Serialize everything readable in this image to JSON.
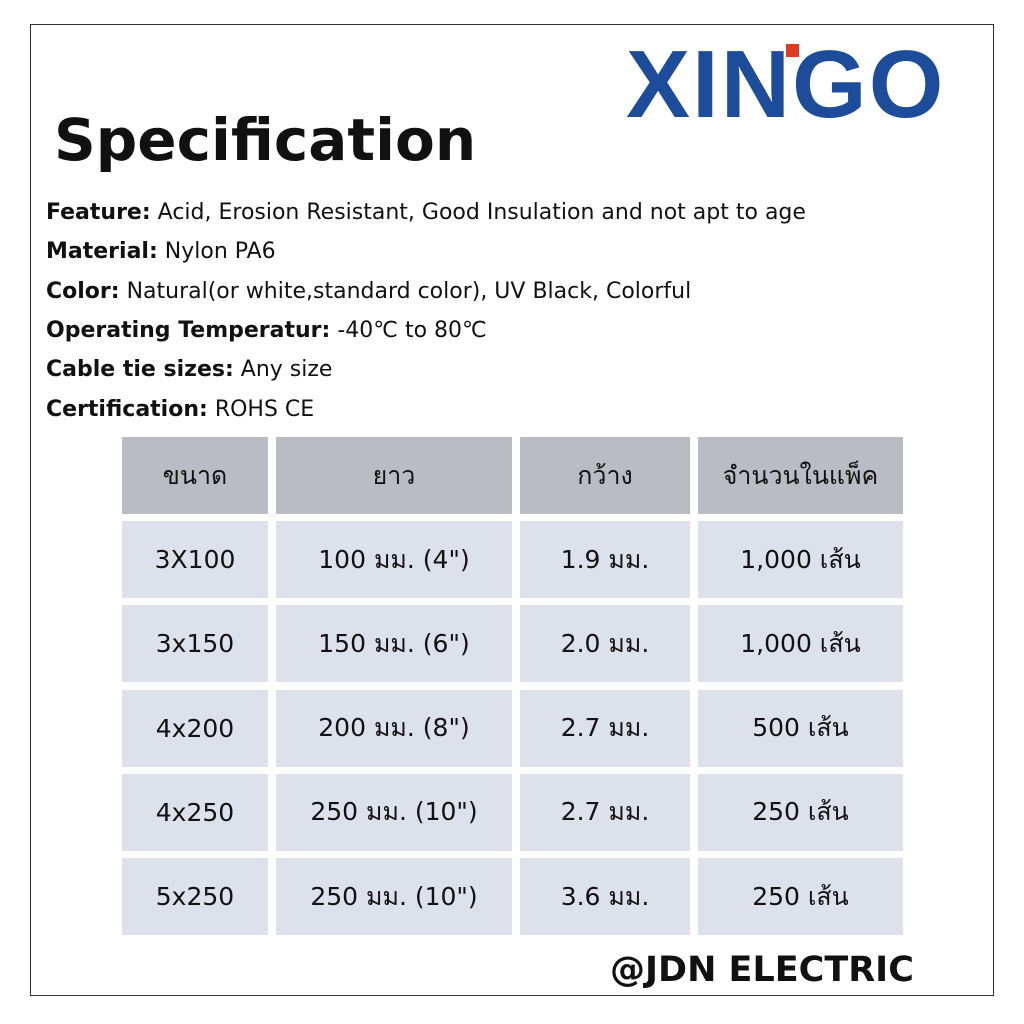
{
  "logo": "XINGO",
  "title": "Specification",
  "specs": [
    {
      "label": "Feature:",
      "value": "Acid, Erosion Resistant, Good Insulation and not apt to age"
    },
    {
      "label": "Material:",
      "value": "Nylon PA6"
    },
    {
      "label": "Color:",
      "value": "Natural(or white,standard color), UV Black, Colorful"
    },
    {
      "label": "Operating Temperatur:",
      "value": "-40℃ to 80℃"
    },
    {
      "label": "Cable tie sizes:",
      "value": "Any size"
    },
    {
      "label": "Certification:",
      "value": "ROHS CE"
    }
  ],
  "table": {
    "header": [
      "ขนาด",
      "ยาว",
      "กว้าง",
      "จำนวนในแพ็ค"
    ],
    "rows": [
      [
        "3X100",
        "100 มม. (4\")",
        "1.9 มม.",
        "1,000 เส้น"
      ],
      [
        "3x150",
        "150 มม. (6\")",
        "2.0 มม.",
        "1,000 เส้น"
      ],
      [
        "4x200",
        "200 มม. (8\")",
        "2.7 มม.",
        "500 เส้น"
      ],
      [
        "4x250",
        "250 มม. (10\")",
        "2.7 มม.",
        "250 เส้น"
      ],
      [
        "5x250",
        "250 มม. (10\")",
        "3.6 มม.",
        "250 เส้น"
      ]
    ]
  },
  "footer": "@JDN ELECTRIC"
}
